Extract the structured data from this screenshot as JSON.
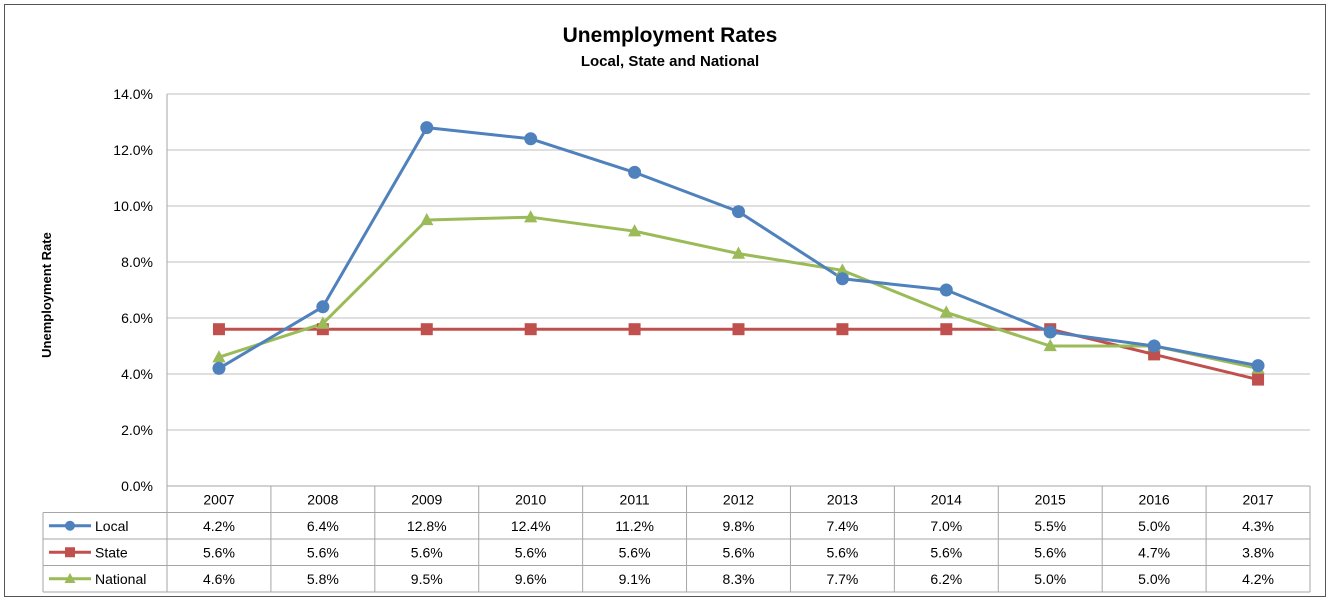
{
  "chart_data": {
    "type": "line",
    "title": "Unemployment Rates",
    "subtitle": "Local, State and National",
    "ylabel": "Unemployment Rate",
    "xlabel": "",
    "categories": [
      "2007",
      "2008",
      "2009",
      "2010",
      "2011",
      "2012",
      "2013",
      "2014",
      "2015",
      "2016",
      "2017"
    ],
    "ylim": [
      0,
      14
    ],
    "yticks": [
      0,
      2,
      4,
      6,
      8,
      10,
      12,
      14
    ],
    "ytick_labels": [
      "0.0%",
      "2.0%",
      "4.0%",
      "6.0%",
      "8.0%",
      "10.0%",
      "12.0%",
      "14.0%"
    ],
    "grid": "horizontal",
    "legend": "data-table",
    "series": [
      {
        "name": "Local",
        "color": "#4F81BD",
        "marker": "circle",
        "values": [
          4.2,
          6.4,
          12.8,
          12.4,
          11.2,
          9.8,
          7.4,
          7.0,
          5.5,
          5.0,
          4.3
        ],
        "labels": [
          "4.2%",
          "6.4%",
          "12.8%",
          "12.4%",
          "11.2%",
          "9.8%",
          "7.4%",
          "7.0%",
          "5.5%",
          "5.0%",
          "4.3%"
        ]
      },
      {
        "name": "State",
        "color": "#C0504D",
        "marker": "square",
        "values": [
          5.6,
          5.6,
          5.6,
          5.6,
          5.6,
          5.6,
          5.6,
          5.6,
          5.6,
          4.7,
          3.8
        ],
        "labels": [
          "5.6%",
          "5.6%",
          "5.6%",
          "5.6%",
          "5.6%",
          "5.6%",
          "5.6%",
          "5.6%",
          "5.6%",
          "4.7%",
          "3.8%"
        ]
      },
      {
        "name": "National",
        "color": "#9BBB59",
        "marker": "triangle",
        "values": [
          4.6,
          5.8,
          9.5,
          9.6,
          9.1,
          8.3,
          7.7,
          6.2,
          5.0,
          5.0,
          4.2
        ],
        "labels": [
          "4.6%",
          "5.8%",
          "9.5%",
          "9.6%",
          "9.1%",
          "8.3%",
          "7.7%",
          "6.2%",
          "5.0%",
          "5.0%",
          "4.2%"
        ]
      }
    ]
  }
}
